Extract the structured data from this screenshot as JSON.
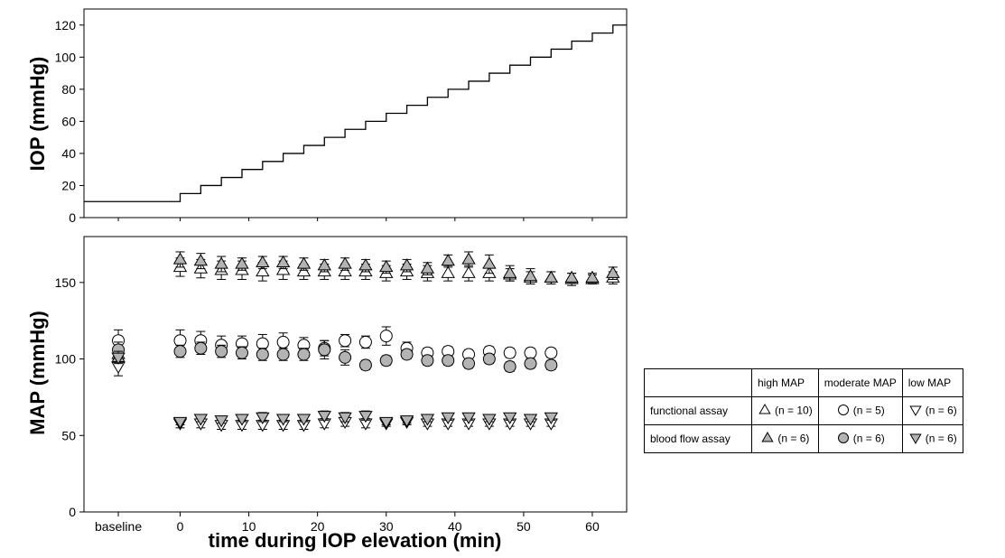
{
  "chart_data": [
    {
      "type": "line",
      "ylabel": "IOP (mmHg)",
      "ylim": [
        0,
        130
      ],
      "yticks": [
        0,
        20,
        40,
        60,
        80,
        100,
        120
      ],
      "xlim": [
        -14,
        65
      ],
      "step_start_min": 0,
      "step_interval_min": 3,
      "baseline_iop": 10,
      "step_levels": [
        15,
        20,
        25,
        30,
        35,
        40,
        45,
        50,
        55,
        60,
        65,
        70,
        75,
        80,
        85,
        90,
        95,
        100,
        105,
        110,
        115,
        120
      ]
    },
    {
      "type": "scatter",
      "ylabel": "MAP (mmHg)",
      "xlabel": "time during IOP elevation (min)",
      "ylim": [
        0,
        180
      ],
      "yticks": [
        0,
        50,
        100,
        150
      ],
      "xlim": [
        -14,
        65
      ],
      "xtick_labels": [
        "baseline",
        "0",
        "10",
        "20",
        "30",
        "40",
        "50",
        "60"
      ],
      "xtick_values": [
        -9,
        0,
        10,
        20,
        30,
        40,
        50,
        60
      ],
      "baseline_x": -9,
      "x": [
        0,
        3,
        6,
        9,
        12,
        15,
        18,
        21,
        24,
        27,
        30,
        33,
        36,
        39,
        42,
        45,
        48,
        51,
        54,
        57,
        60,
        63
      ],
      "series": [
        {
          "name": "high MAP functional assay",
          "marker": "triangle-up-open",
          "baseline": 103,
          "baseline_err": 5,
          "values": [
            160,
            159,
            158,
            158,
            157,
            158,
            157,
            157,
            157,
            157,
            156,
            157,
            156,
            156,
            156,
            156,
            155,
            153,
            153,
            152,
            152,
            153
          ],
          "err": [
            6,
            6,
            6,
            6,
            6,
            6,
            5,
            5,
            5,
            5,
            5,
            5,
            5,
            5,
            5,
            5,
            4,
            4,
            4,
            4,
            3,
            4
          ]
        },
        {
          "name": "high MAP blood flow assay",
          "marker": "triangle-up-filled",
          "baseline": 101,
          "baseline_err": 4,
          "values": [
            165,
            164,
            162,
            162,
            163,
            163,
            162,
            161,
            162,
            161,
            160,
            161,
            159,
            164,
            165,
            162,
            156,
            154,
            153,
            153,
            153,
            156
          ],
          "err": [
            5,
            5,
            5,
            4,
            4,
            4,
            4,
            4,
            4,
            4,
            4,
            4,
            4,
            4,
            5,
            6,
            5,
            5,
            4,
            3,
            3,
            4
          ]
        },
        {
          "name": "moderate MAP functional assay",
          "marker": "circle-open",
          "baseline": 112,
          "baseline_err": 7,
          "values": [
            112,
            112,
            109,
            110,
            110,
            111,
            109,
            107,
            112,
            111,
            115,
            107,
            104,
            105,
            103,
            105,
            104,
            104,
            104
          ],
          "err": [
            7,
            6,
            6,
            5,
            6,
            6,
            5,
            5,
            4,
            4,
            6,
            4,
            3,
            3,
            3,
            3,
            3,
            3,
            3
          ]
        },
        {
          "name": "moderate MAP blood flow assay",
          "marker": "circle-filled",
          "baseline": 106,
          "baseline_err": 5,
          "values": [
            105,
            107,
            105,
            104,
            103,
            103,
            103,
            106,
            101,
            96,
            99,
            103,
            99,
            99,
            97,
            100,
            95,
            97,
            96
          ],
          "err": [
            4,
            4,
            4,
            4,
            4,
            4,
            4,
            6,
            5,
            3,
            3,
            3,
            3,
            3,
            3,
            3,
            3,
            3,
            3
          ]
        },
        {
          "name": "low MAP functional assay",
          "marker": "triangle-down-open",
          "baseline": 95,
          "baseline_err": 6,
          "values": [
            58,
            58,
            57,
            57,
            57,
            57,
            57,
            58,
            59,
            58,
            58,
            59,
            58,
            58,
            58,
            58,
            58,
            58,
            58
          ],
          "err": [
            3,
            3,
            3,
            3,
            3,
            3,
            3,
            3,
            3,
            3,
            2,
            2,
            2,
            2,
            2,
            2,
            2,
            2,
            2
          ]
        },
        {
          "name": "low MAP blood flow assay",
          "marker": "triangle-down-filled",
          "baseline": 101,
          "baseline_err": 4,
          "values": [
            59,
            61,
            60,
            61,
            62,
            61,
            61,
            63,
            62,
            63,
            59,
            60,
            61,
            62,
            62,
            61,
            62,
            61,
            62
          ],
          "err": [
            2,
            2,
            2,
            2,
            3,
            2,
            2,
            3,
            3,
            3,
            2,
            2,
            2,
            2,
            2,
            2,
            2,
            2,
            2
          ]
        }
      ]
    }
  ],
  "legend": {
    "col_headers": [
      "high MAP",
      "moderate MAP",
      "low MAP"
    ],
    "rows": [
      {
        "label": "functional assay",
        "cells": [
          {
            "marker": "triangle-up-open",
            "text": "(n = 10)"
          },
          {
            "marker": "circle-open",
            "text": "(n = 5)"
          },
          {
            "marker": "triangle-down-open",
            "text": "(n = 6)"
          }
        ]
      },
      {
        "label": "blood flow assay",
        "cells": [
          {
            "marker": "triangle-up-filled",
            "text": "(n = 6)"
          },
          {
            "marker": "circle-filled",
            "text": "(n = 6)"
          },
          {
            "marker": "triangle-down-filled",
            "text": "(n = 6)"
          }
        ]
      }
    ]
  },
  "colors": {
    "filled_marker": "#b3b3b3",
    "line": "#000000"
  }
}
